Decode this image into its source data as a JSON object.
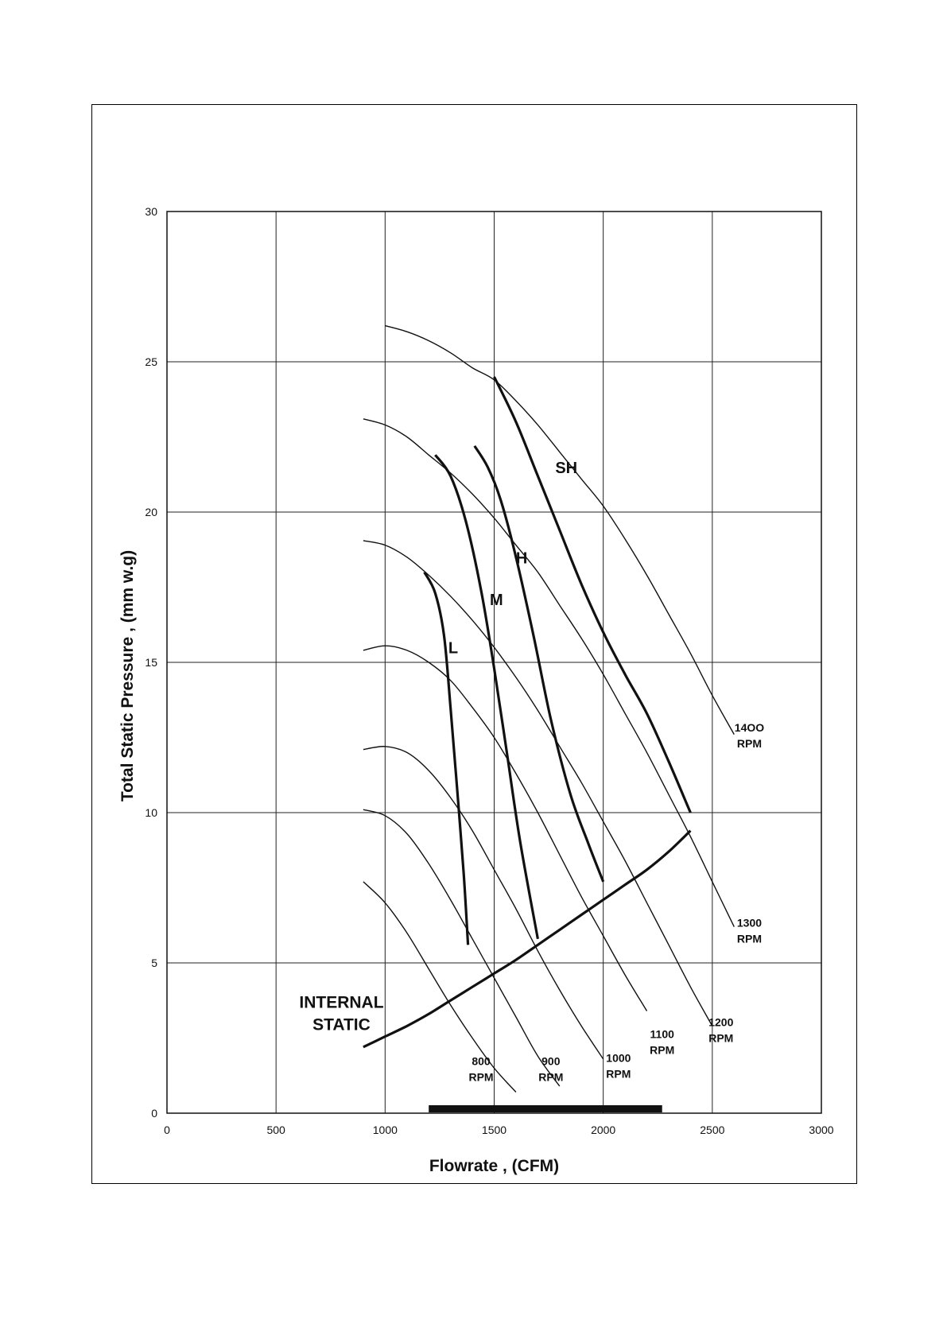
{
  "chart_data": {
    "type": "line",
    "xlabel": "Flowrate , (CFM)",
    "ylabel": "Total Static Pressure , (mm w.g)",
    "xlim": [
      0,
      3000
    ],
    "ylim": [
      0,
      30
    ],
    "x_ticks": [
      "0",
      "500",
      "1000",
      "1500",
      "2000",
      "2500",
      "3000"
    ],
    "y_ticks": [
      "0",
      "5",
      "10",
      "15",
      "20",
      "25",
      "30"
    ],
    "grid": true,
    "series": [
      {
        "name": "800 RPM",
        "label_lines": [
          "800",
          "RPM"
        ],
        "label_at": [
          1440,
          1.6
        ],
        "points": [
          [
            900,
            7.7
          ],
          [
            1000,
            7.0
          ],
          [
            1100,
            6.0
          ],
          [
            1200,
            4.8
          ],
          [
            1300,
            3.6
          ],
          [
            1400,
            2.5
          ],
          [
            1500,
            1.5
          ],
          [
            1600,
            0.7
          ]
        ]
      },
      {
        "name": "900 RPM",
        "label_lines": [
          "900",
          "RPM"
        ],
        "label_at": [
          1760,
          1.6
        ],
        "points": [
          [
            900,
            10.1
          ],
          [
            1000,
            9.9
          ],
          [
            1100,
            9.3
          ],
          [
            1200,
            8.3
          ],
          [
            1300,
            7.1
          ],
          [
            1400,
            5.8
          ],
          [
            1500,
            4.5
          ],
          [
            1600,
            3.2
          ],
          [
            1700,
            1.9
          ],
          [
            1800,
            0.9
          ]
        ]
      },
      {
        "name": "1000 RPM",
        "label_lines": [
          "1000",
          "RPM"
        ],
        "label_at": [
          2070,
          1.7
        ],
        "points": [
          [
            900,
            12.1
          ],
          [
            1000,
            12.2
          ],
          [
            1100,
            12.0
          ],
          [
            1200,
            11.4
          ],
          [
            1300,
            10.5
          ],
          [
            1400,
            9.4
          ],
          [
            1500,
            8.1
          ],
          [
            1600,
            6.8
          ],
          [
            1700,
            5.4
          ],
          [
            1800,
            4.1
          ],
          [
            1900,
            2.9
          ],
          [
            2000,
            1.8
          ]
        ]
      },
      {
        "name": "1100 RPM",
        "label_lines": [
          "1100",
          "RPM"
        ],
        "label_at": [
          2270,
          2.5
        ],
        "points": [
          [
            900,
            15.4
          ],
          [
            1000,
            15.55
          ],
          [
            1100,
            15.4
          ],
          [
            1200,
            15.0
          ],
          [
            1300,
            14.4
          ],
          [
            1400,
            13.5
          ],
          [
            1500,
            12.5
          ],
          [
            1600,
            11.3
          ],
          [
            1700,
            10.0
          ],
          [
            1800,
            8.6
          ],
          [
            1900,
            7.2
          ],
          [
            2000,
            5.9
          ],
          [
            2100,
            4.6
          ],
          [
            2200,
            3.4
          ]
        ]
      },
      {
        "name": "1200 RPM",
        "label_lines": [
          "1200",
          "RPM"
        ],
        "label_at": [
          2540,
          2.9
        ],
        "points": [
          [
            900,
            19.05
          ],
          [
            1000,
            18.9
          ],
          [
            1100,
            18.5
          ],
          [
            1200,
            17.9
          ],
          [
            1300,
            17.2
          ],
          [
            1400,
            16.4
          ],
          [
            1500,
            15.5
          ],
          [
            1600,
            14.5
          ],
          [
            1700,
            13.4
          ],
          [
            1800,
            12.2
          ],
          [
            1900,
            11.0
          ],
          [
            2000,
            9.7
          ],
          [
            2100,
            8.4
          ],
          [
            2200,
            7.0
          ],
          [
            2300,
            5.6
          ],
          [
            2400,
            4.2
          ],
          [
            2500,
            2.9
          ]
        ]
      },
      {
        "name": "1300 RPM",
        "label_lines": [
          "1300",
          "RPM"
        ],
        "label_at": [
          2670,
          6.2
        ],
        "points": [
          [
            900,
            23.1
          ],
          [
            1000,
            22.9
          ],
          [
            1100,
            22.5
          ],
          [
            1200,
            21.9
          ],
          [
            1300,
            21.3
          ],
          [
            1400,
            20.6
          ],
          [
            1500,
            19.8
          ],
          [
            1600,
            18.9
          ],
          [
            1700,
            18.0
          ],
          [
            1800,
            16.9
          ],
          [
            1900,
            15.8
          ],
          [
            2000,
            14.6
          ],
          [
            2100,
            13.3
          ],
          [
            2200,
            12.0
          ],
          [
            2300,
            10.6
          ],
          [
            2400,
            9.2
          ],
          [
            2500,
            7.7
          ],
          [
            2600,
            6.2
          ]
        ]
      },
      {
        "name": "1400 RPM",
        "label_lines": [
          "14OO",
          "RPM"
        ],
        "label_at": [
          2670,
          12.7
        ],
        "points": [
          [
            1000,
            26.2
          ],
          [
            1100,
            26.0
          ],
          [
            1200,
            25.7
          ],
          [
            1300,
            25.3
          ],
          [
            1400,
            24.8
          ],
          [
            1500,
            24.4
          ],
          [
            1600,
            23.7
          ],
          [
            1700,
            22.9
          ],
          [
            1800,
            22.0
          ],
          [
            1900,
            21.1
          ],
          [
            2000,
            20.2
          ],
          [
            2100,
            19.1
          ],
          [
            2200,
            17.9
          ],
          [
            2300,
            16.6
          ],
          [
            2400,
            15.3
          ],
          [
            2500,
            13.9
          ],
          [
            2600,
            12.6
          ]
        ]
      }
    ],
    "fan_speeds": [
      {
        "name": "L",
        "label_at": [
          1290,
          15.3
        ],
        "points": [
          [
            1180,
            18.0
          ],
          [
            1230,
            17.3
          ],
          [
            1270,
            15.9
          ],
          [
            1300,
            13.5
          ],
          [
            1330,
            10.8
          ],
          [
            1360,
            8.0
          ],
          [
            1380,
            5.6
          ]
        ]
      },
      {
        "name": "M",
        "label_at": [
          1480,
          16.9
        ],
        "points": [
          [
            1230,
            21.9
          ],
          [
            1300,
            21.2
          ],
          [
            1370,
            19.7
          ],
          [
            1440,
            17.4
          ],
          [
            1500,
            14.8
          ],
          [
            1560,
            11.9
          ],
          [
            1620,
            9.0
          ],
          [
            1700,
            5.8
          ]
        ]
      },
      {
        "name": "H",
        "label_at": [
          1600,
          18.3
        ],
        "points": [
          [
            1410,
            22.2
          ],
          [
            1470,
            21.5
          ],
          [
            1530,
            20.4
          ],
          [
            1600,
            18.5
          ],
          [
            1680,
            15.9
          ],
          [
            1760,
            13.1
          ],
          [
            1850,
            10.6
          ],
          [
            1930,
            9.0
          ],
          [
            2000,
            7.7
          ]
        ]
      },
      {
        "name": "SH",
        "label_at": [
          1780,
          21.3
        ],
        "points": [
          [
            1500,
            24.5
          ],
          [
            1600,
            23.0
          ],
          [
            1700,
            21.2
          ],
          [
            1800,
            19.4
          ],
          [
            1900,
            17.6
          ],
          [
            2000,
            16.0
          ],
          [
            2100,
            14.6
          ],
          [
            2200,
            13.3
          ],
          [
            2300,
            11.7
          ],
          [
            2400,
            10.0
          ]
        ]
      }
    ],
    "internal_static": {
      "label_lines": [
        "INTERNAL",
        "STATIC"
      ],
      "label_at": [
        800,
        3.5
      ],
      "points": [
        [
          900,
          2.2
        ],
        [
          1000,
          2.55
        ],
        [
          1100,
          2.9
        ],
        [
          1200,
          3.3
        ],
        [
          1300,
          3.75
        ],
        [
          1400,
          4.2
        ],
        [
          1500,
          4.65
        ],
        [
          1600,
          5.1
        ],
        [
          1700,
          5.6
        ],
        [
          1800,
          6.1
        ],
        [
          1900,
          6.6
        ],
        [
          2000,
          7.1
        ],
        [
          2100,
          7.6
        ],
        [
          2200,
          8.1
        ],
        [
          2300,
          8.7
        ],
        [
          2400,
          9.4
        ]
      ]
    },
    "operating_range": [
      1200,
      2270
    ]
  }
}
